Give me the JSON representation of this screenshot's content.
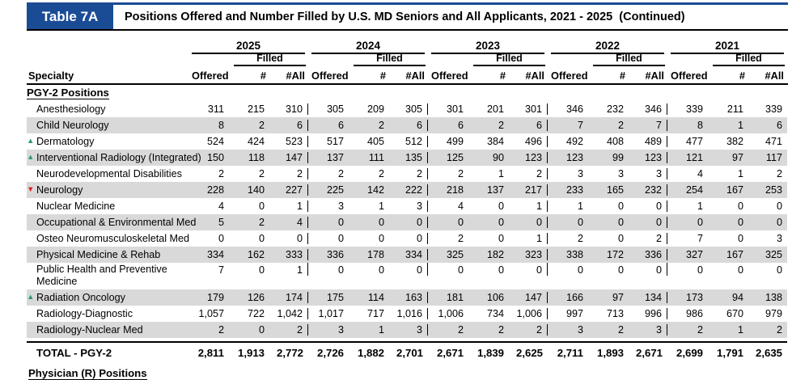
{
  "header": {
    "tab_label": "Table 7A",
    "title": "Positions Offered and Number Filled by U.S. MD Seniors and All Applicants, 2021 - 2025  (Continued)"
  },
  "table": {
    "specialty_header": "Specialty",
    "years": [
      "2025",
      "2024",
      "2023",
      "2022",
      "2021"
    ],
    "filled_label": "Filled",
    "col_labels": {
      "offered": "Offered",
      "md": "#",
      "all": "#All"
    },
    "section_header": "PGY-2 Positions",
    "rows": [
      {
        "specialty": "Anesthesiology",
        "trend": "none",
        "shaded": false,
        "values": [
          [
            "311",
            "215",
            "310"
          ],
          [
            "305",
            "209",
            "305"
          ],
          [
            "301",
            "201",
            "301"
          ],
          [
            "346",
            "232",
            "346"
          ],
          [
            "339",
            "211",
            "339"
          ]
        ]
      },
      {
        "specialty": "Child Neurology",
        "trend": "none",
        "shaded": true,
        "values": [
          [
            "8",
            "2",
            "6"
          ],
          [
            "6",
            "2",
            "6"
          ],
          [
            "6",
            "2",
            "6"
          ],
          [
            "7",
            "2",
            "7"
          ],
          [
            "8",
            "1",
            "6"
          ]
        ]
      },
      {
        "specialty": "Dermatology",
        "trend": "up",
        "shaded": false,
        "values": [
          [
            "524",
            "424",
            "523"
          ],
          [
            "517",
            "405",
            "512"
          ],
          [
            "499",
            "384",
            "496"
          ],
          [
            "492",
            "408",
            "489"
          ],
          [
            "477",
            "382",
            "471"
          ]
        ]
      },
      {
        "specialty": "Interventional Radiology (Integrated)",
        "trend": "up",
        "shaded": true,
        "values": [
          [
            "150",
            "118",
            "147"
          ],
          [
            "137",
            "111",
            "135"
          ],
          [
            "125",
            "90",
            "123"
          ],
          [
            "123",
            "99",
            "123"
          ],
          [
            "121",
            "97",
            "117"
          ]
        ]
      },
      {
        "specialty": "Neurodevelopmental Disabilities",
        "trend": "none",
        "shaded": false,
        "values": [
          [
            "2",
            "2",
            "2"
          ],
          [
            "2",
            "2",
            "2"
          ],
          [
            "2",
            "1",
            "2"
          ],
          [
            "3",
            "3",
            "3"
          ],
          [
            "4",
            "1",
            "2"
          ]
        ]
      },
      {
        "specialty": "Neurology",
        "trend": "down",
        "shaded": true,
        "values": [
          [
            "228",
            "140",
            "227"
          ],
          [
            "225",
            "142",
            "222"
          ],
          [
            "218",
            "137",
            "217"
          ],
          [
            "233",
            "165",
            "232"
          ],
          [
            "254",
            "167",
            "253"
          ]
        ]
      },
      {
        "specialty": "Nuclear Medicine",
        "trend": "none",
        "shaded": false,
        "values": [
          [
            "4",
            "0",
            "1"
          ],
          [
            "3",
            "1",
            "3"
          ],
          [
            "4",
            "0",
            "1"
          ],
          [
            "1",
            "0",
            "0"
          ],
          [
            "1",
            "0",
            "0"
          ]
        ]
      },
      {
        "specialty": "Occupational & Environmental Med",
        "trend": "none",
        "shaded": true,
        "values": [
          [
            "5",
            "2",
            "4"
          ],
          [
            "0",
            "0",
            "0"
          ],
          [
            "0",
            "0",
            "0"
          ],
          [
            "0",
            "0",
            "0"
          ],
          [
            "0",
            "0",
            "0"
          ]
        ]
      },
      {
        "specialty": "Osteo Neuromusculoskeletal Med",
        "trend": "none",
        "shaded": false,
        "values": [
          [
            "0",
            "0",
            "0"
          ],
          [
            "0",
            "0",
            "0"
          ],
          [
            "2",
            "0",
            "1"
          ],
          [
            "2",
            "0",
            "2"
          ],
          [
            "7",
            "0",
            "3"
          ]
        ]
      },
      {
        "specialty": "Physical Medicine & Rehab",
        "trend": "none",
        "shaded": true,
        "values": [
          [
            "334",
            "162",
            "333"
          ],
          [
            "336",
            "178",
            "334"
          ],
          [
            "325",
            "182",
            "323"
          ],
          [
            "338",
            "172",
            "336"
          ],
          [
            "327",
            "167",
            "325"
          ]
        ]
      },
      {
        "specialty": "Public Health and Preventive Medicine",
        "trend": "none",
        "shaded": false,
        "tall": true,
        "values": [
          [
            "7",
            "0",
            "1"
          ],
          [
            "0",
            "0",
            "0"
          ],
          [
            "0",
            "0",
            "0"
          ],
          [
            "0",
            "0",
            "0"
          ],
          [
            "0",
            "0",
            "0"
          ]
        ]
      },
      {
        "specialty": "Radiation Oncology",
        "trend": "up",
        "shaded": true,
        "values": [
          [
            "179",
            "126",
            "174"
          ],
          [
            "175",
            "114",
            "163"
          ],
          [
            "181",
            "106",
            "147"
          ],
          [
            "166",
            "97",
            "134"
          ],
          [
            "173",
            "94",
            "138"
          ]
        ]
      },
      {
        "specialty": "Radiology-Diagnostic",
        "trend": "none",
        "shaded": false,
        "values": [
          [
            "1,057",
            "722",
            "1,042"
          ],
          [
            "1,017",
            "717",
            "1,016"
          ],
          [
            "1,006",
            "734",
            "1,006"
          ],
          [
            "997",
            "713",
            "996"
          ],
          [
            "986",
            "670",
            "979"
          ]
        ]
      },
      {
        "specialty": "Radiology-Nuclear Med",
        "trend": "none",
        "shaded": true,
        "values": [
          [
            "2",
            "0",
            "2"
          ],
          [
            "3",
            "1",
            "3"
          ],
          [
            "2",
            "2",
            "2"
          ],
          [
            "3",
            "2",
            "3"
          ],
          [
            "2",
            "1",
            "2"
          ]
        ]
      }
    ],
    "total_row": {
      "label": "TOTAL - PGY-2",
      "values": [
        [
          "2,811",
          "1,913",
          "2,772"
        ],
        [
          "2,726",
          "1,882",
          "2,701"
        ],
        [
          "2,671",
          "1,839",
          "2,625"
        ],
        [
          "2,711",
          "1,893",
          "2,671"
        ],
        [
          "2,699",
          "1,791",
          "2,635"
        ]
      ]
    },
    "next_section_header": "Physician (R) Positions"
  },
  "icons": {
    "up_arrow": "▲",
    "down_arrow": "▼"
  },
  "colors": {
    "navy": "#1A4C96",
    "trend_up_green": "#2E9B72",
    "trend_down_red": "#E0201F",
    "row_shade": "#D9D9D9"
  }
}
